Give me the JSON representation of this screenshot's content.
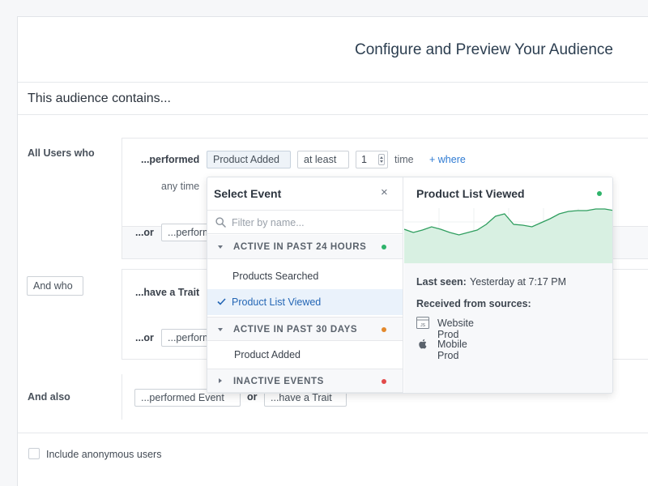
{
  "header": {
    "title": "Configure and Preview Your Audience"
  },
  "subheader": {
    "title": "This audience contains..."
  },
  "group1": {
    "label": "All Users who",
    "performed_label": "...performed",
    "event_value": "Product Added",
    "frequency": "at least",
    "count": "1",
    "time_label": "time",
    "where_link": "+ where",
    "timeframe": "any time",
    "or_label": "...or",
    "or_button": "...performed Event"
  },
  "group2": {
    "button": "And who",
    "trait_label": "...have a Trait",
    "or_label": "...or",
    "or_button": "...performed Event"
  },
  "group3": {
    "label": "And also",
    "btn_event": "...performed Event",
    "or_label": "or",
    "btn_trait": "...have a Trait"
  },
  "options": {
    "anonymous_label": "Include anonymous users"
  },
  "dropdown": {
    "title": "Select Event",
    "close_icon": "×",
    "search_placeholder": "Filter by name...",
    "sections": [
      {
        "label": "ACTIVE IN PAST 24 HOURS",
        "color": "#2fb36b",
        "expanded": true,
        "items": [
          "Products Searched",
          "Product List Viewed"
        ]
      },
      {
        "label": "ACTIVE IN PAST 30 DAYS",
        "color": "#e3882b",
        "expanded": true,
        "items": [
          "Product Added"
        ]
      },
      {
        "label": "INACTIVE EVENTS",
        "color": "#e24a4a",
        "expanded": false,
        "items": []
      }
    ],
    "selected_item": "Product List Viewed"
  },
  "preview": {
    "title": "Product List Viewed",
    "status_color": "#2fb36b",
    "last_seen_label": "Last seen:",
    "last_seen_value": "Yesterday at 7:17 PM",
    "sources_label": "Received from sources:",
    "sources": [
      {
        "name": "Website Prod",
        "icon": "javascript-icon"
      },
      {
        "name": "Mobile Prod",
        "icon": "apple-icon"
      }
    ],
    "sparkline": [
      26,
      30,
      27,
      23,
      26,
      30,
      33,
      30,
      27,
      20,
      10,
      7,
      20,
      21,
      23,
      18,
      13,
      7,
      4,
      3,
      3,
      1,
      1,
      3
    ]
  }
}
